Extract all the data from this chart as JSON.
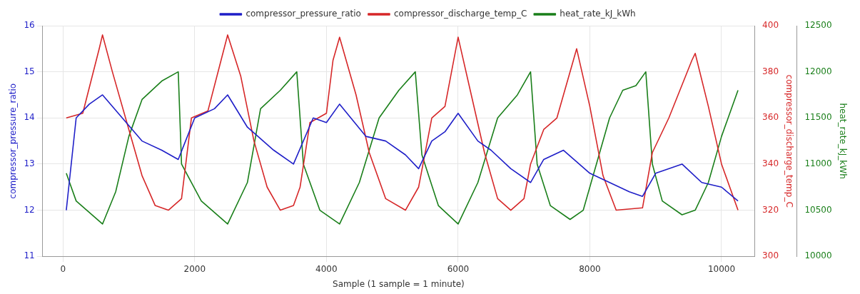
{
  "chart_data": {
    "type": "line",
    "xlabel": "Sample (1 sample = 1 minute)",
    "ylabel": "compressor_pressure_ratio",
    "y2label": "compressor_discharge_temp_C",
    "y3label": "heat_rate_kJ_kWh",
    "legend": "top",
    "grid": true,
    "marker": "none",
    "line_style": "solid",
    "xlim": [
      -310,
      10500
    ],
    "xticks": [
      0,
      2000,
      4000,
      6000,
      8000,
      10000
    ],
    "ylim": [
      11,
      16
    ],
    "yticks": [
      11,
      12,
      13,
      14,
      15,
      16
    ],
    "y2lim": [
      300,
      400
    ],
    "y2ticks": [
      300,
      320,
      340,
      360,
      380,
      400
    ],
    "y3lim": [
      10000,
      12500
    ],
    "y3ticks": [
      10000,
      10500,
      11000,
      11500,
      12000,
      12500
    ],
    "series": [
      {
        "name": "compressor_pressure_ratio",
        "color": "#1f1fc8",
        "x": [
          50,
          200,
          400,
          600,
          900,
          1200,
          1500,
          1750,
          2000,
          2300,
          2500,
          2800,
          3200,
          3500,
          3800,
          4000,
          4200,
          4600,
          4900,
          5200,
          5400,
          5600,
          5800,
          6000,
          6300,
          6500,
          6800,
          7100,
          7300,
          7600,
          8000,
          8300,
          8600,
          8800,
          9000,
          9400,
          9700,
          10000,
          10250
        ],
        "values": [
          12.0,
          14.0,
          14.3,
          14.5,
          14.0,
          13.5,
          13.3,
          13.1,
          14.0,
          14.2,
          14.5,
          13.8,
          13.3,
          13.0,
          14.0,
          13.9,
          14.3,
          13.6,
          13.5,
          13.2,
          12.9,
          13.5,
          13.7,
          14.1,
          13.5,
          13.3,
          12.9,
          12.6,
          13.1,
          13.3,
          12.8,
          12.6,
          12.4,
          12.3,
          12.8,
          13.0,
          12.6,
          12.5,
          12.2
        ]
      },
      {
        "name": "compressor_discharge_temp_C",
        "color": "#d62728",
        "axis": "y2",
        "x": [
          50,
          300,
          550,
          600,
          750,
          1000,
          1200,
          1400,
          1600,
          1800,
          1950,
          2200,
          2400,
          2500,
          2700,
          2900,
          3100,
          3300,
          3500,
          3600,
          3750,
          4000,
          4100,
          4200,
          4450,
          4650,
          4900,
          5200,
          5400,
          5600,
          5800,
          6000,
          6200,
          6400,
          6600,
          6800,
          7000,
          7100,
          7300,
          7500,
          7750,
          7800,
          8000,
          8200,
          8400,
          8800,
          8950,
          9200,
          9550,
          9600,
          9800,
          10000,
          10250
        ],
        "values": [
          360,
          362,
          390,
          396,
          380,
          355,
          335,
          322,
          320,
          325,
          360,
          363,
          385,
          396,
          378,
          350,
          330,
          320,
          322,
          330,
          358,
          362,
          385,
          395,
          370,
          345,
          325,
          320,
          330,
          360,
          365,
          395,
          370,
          345,
          325,
          320,
          325,
          340,
          355,
          360,
          385,
          390,
          365,
          335,
          320,
          321,
          345,
          360,
          385,
          388,
          365,
          340,
          320
        ]
      },
      {
        "name": "heat_rate_kJ_kWh",
        "color": "#1a7f1a",
        "axis": "y3",
        "x": [
          50,
          200,
          600,
          800,
          1000,
          1200,
          1500,
          1750,
          1800,
          2100,
          2500,
          2800,
          3000,
          3300,
          3550,
          3650,
          3900,
          4200,
          4500,
          4800,
          5100,
          5350,
          5450,
          5700,
          6000,
          6300,
          6600,
          6900,
          7100,
          7200,
          7400,
          7700,
          7900,
          8100,
          8300,
          8500,
          8700,
          8850,
          8950,
          9100,
          9400,
          9600,
          9800,
          10000,
          10250
        ],
        "values": [
          10900,
          10600,
          10350,
          10700,
          11300,
          11700,
          11900,
          12000,
          11000,
          10600,
          10350,
          10800,
          11600,
          11800,
          12000,
          11000,
          10500,
          10350,
          10800,
          11500,
          11800,
          12000,
          11100,
          10550,
          10350,
          10800,
          11500,
          11750,
          12000,
          11000,
          10550,
          10400,
          10500,
          11000,
          11500,
          11800,
          11850,
          12000,
          11000,
          10600,
          10450,
          10500,
          10800,
          11300,
          11800
        ]
      }
    ]
  }
}
